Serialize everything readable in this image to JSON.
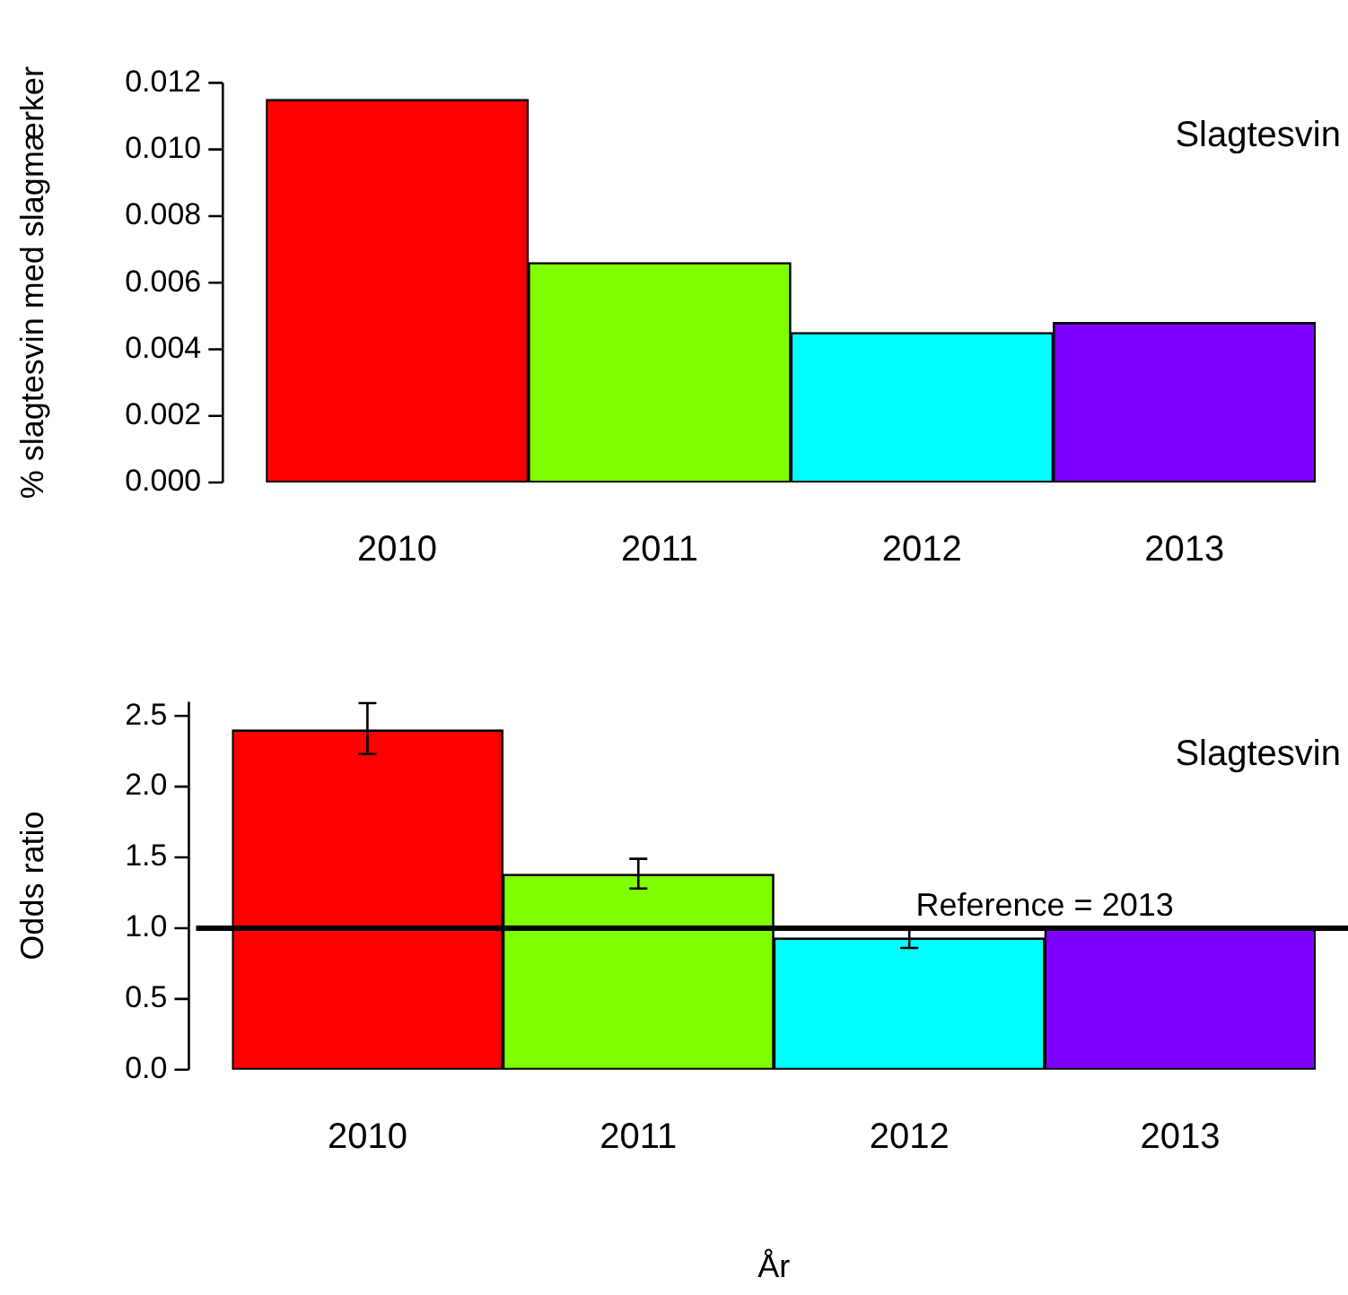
{
  "chart_data": [
    {
      "type": "bar",
      "ylabel": "% slagtesvin med slagmærker",
      "categories": [
        "2010",
        "2011",
        "2012",
        "2013"
      ],
      "values": [
        0.0115,
        0.0066,
        0.0045,
        0.0048
      ],
      "colors": [
        "#ff0000",
        "#7fff00",
        "#00ffff",
        "#8000ff"
      ],
      "ylim": [
        0,
        0.012
      ],
      "yticks": [
        {
          "value": 0,
          "label": "0.000"
        },
        {
          "value": 0.002,
          "label": "0.002"
        },
        {
          "value": 0.004,
          "label": "0.004"
        },
        {
          "value": 0.006,
          "label": "0.006"
        },
        {
          "value": 0.008,
          "label": "0.008"
        },
        {
          "value": 0.01,
          "label": "0.010"
        },
        {
          "value": 0.012,
          "label": "0.012"
        }
      ],
      "grid": false,
      "legend": false,
      "annotations": [
        "Slagtesvin"
      ]
    },
    {
      "type": "bar",
      "ylabel": "Odds ratio",
      "xlabel": "År",
      "categories": [
        "2010",
        "2011",
        "2012",
        "2013"
      ],
      "values": [
        2.4,
        1.38,
        0.93,
        1.0
      ],
      "colors": [
        "#ff0000",
        "#7fff00",
        "#00ffff",
        "#8000ff"
      ],
      "errors": [
        [
          2.23,
          2.59
        ],
        [
          1.28,
          1.49
        ],
        [
          0.86,
          1.01
        ],
        null
      ],
      "ylim": [
        0,
        2.6
      ],
      "yticks": [
        {
          "value": 0,
          "label": "0.0"
        },
        {
          "value": 0.5,
          "label": "0.5"
        },
        {
          "value": 1,
          "label": "1.0"
        },
        {
          "value": 1.5,
          "label": "1.5"
        },
        {
          "value": 2,
          "label": "2.0"
        },
        {
          "value": 2.5,
          "label": "2.5"
        }
      ],
      "ref_lines": [
        {
          "axis": "y",
          "value": 1.0,
          "color": "#000000"
        }
      ],
      "grid": false,
      "legend": false,
      "annotations": [
        "Slagtesvin",
        {
          "text": "Reference = 2013",
          "y": 1.0
        }
      ]
    }
  ]
}
